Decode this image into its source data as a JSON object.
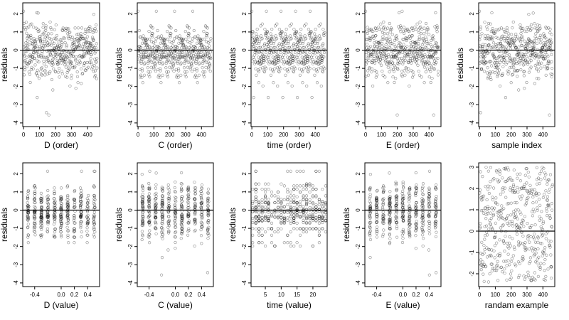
{
  "chart_data": [
    {
      "type": "scatter",
      "xlabel": "D (order)",
      "ylabel": "residuals",
      "xlim": [
        -5,
        475
      ],
      "ylim": [
        -4.2,
        2.6
      ],
      "xticks": [
        "0",
        "100",
        "200",
        "300",
        "400"
      ],
      "yticks": [
        "-4",
        "-3",
        "-2",
        "-1",
        "0",
        "1",
        "2"
      ],
      "hline": 0,
      "points": "simulated; 460 observations, residuals roughly between -4 and 2.3"
    },
    {
      "type": "scatter",
      "xlabel": "C (order)",
      "ylabel": "residuals",
      "xlim": [
        -5,
        475
      ],
      "ylim": [
        -4.2,
        2.6
      ],
      "xticks": [
        "0",
        "100",
        "200",
        "300",
        "400"
      ],
      "yticks": [
        "-4",
        "-3",
        "-2",
        "-1",
        "0",
        "1",
        "2"
      ],
      "hline": 0
    },
    {
      "type": "scatter",
      "xlabel": "time (order)",
      "ylabel": "residuals",
      "xlim": [
        -5,
        475
      ],
      "ylim": [
        -4.2,
        2.6
      ],
      "xticks": [
        "0",
        "100",
        "200",
        "300",
        "400"
      ],
      "yticks": [
        "-4",
        "-3",
        "-2",
        "-1",
        "0",
        "1",
        "2"
      ],
      "hline": 0
    },
    {
      "type": "scatter",
      "xlabel": "E (order)",
      "ylabel": "residuals",
      "xlim": [
        -5,
        475
      ],
      "ylim": [
        -4.2,
        2.6
      ],
      "xticks": [
        "0",
        "100",
        "200",
        "300",
        "400"
      ],
      "yticks": [
        "-4",
        "-3",
        "-2",
        "-1",
        "0",
        "1",
        "2"
      ],
      "hline": 0
    },
    {
      "type": "scatter",
      "xlabel": "sample index",
      "ylabel": "residuals",
      "xlim": [
        -5,
        475
      ],
      "ylim": [
        -4.2,
        2.6
      ],
      "xticks": [
        "0",
        "100",
        "200",
        "300",
        "400"
      ],
      "yticks": [
        "-4",
        "-3",
        "-2",
        "-1",
        "0",
        "1",
        "2"
      ],
      "hline": 0
    },
    {
      "type": "scatter",
      "xlabel": "D (value)",
      "ylabel": "residuals",
      "xlim": [
        -0.58,
        0.58
      ],
      "ylim": [
        -4.2,
        2.6
      ],
      "xticks": [
        "-0.4",
        "0.0",
        "0.2",
        "0.4"
      ],
      "yticks": [
        "-4",
        "-3",
        "-2",
        "-1",
        "0",
        "1",
        "2"
      ],
      "hline": 0
    },
    {
      "type": "scatter",
      "xlabel": "C (value)",
      "ylabel": "residuals",
      "xlim": [
        -0.58,
        0.58
      ],
      "ylim": [
        -4.2,
        2.6
      ],
      "xticks": [
        "-0.4",
        "0.0",
        "0.2",
        "0.4"
      ],
      "yticks": [
        "-4",
        "-3",
        "-2",
        "-1",
        "0",
        "1",
        "2"
      ],
      "hline": 0
    },
    {
      "type": "scatter",
      "xlabel": "time (value)",
      "ylabel": "residuals",
      "xlim": [
        0.5,
        24.5
      ],
      "ylim": [
        -4.2,
        2.6
      ],
      "xticks": [
        "5",
        "10",
        "15",
        "20"
      ],
      "yticks": [
        "-4",
        "-3",
        "-2",
        "-1",
        "0",
        "1",
        "2"
      ],
      "hline": 0
    },
    {
      "type": "scatter",
      "xlabel": "E (value)",
      "ylabel": "residuals",
      "xlim": [
        -0.58,
        0.58
      ],
      "ylim": [
        -4.2,
        2.6
      ],
      "xticks": [
        "-0.4",
        "0.0",
        "0.2",
        "0.4"
      ],
      "yticks": [
        "-4",
        "-3",
        "-2",
        "-1",
        "0",
        "1",
        "2"
      ],
      "hline": 0
    },
    {
      "type": "scatter",
      "xlabel": "randam example",
      "ylabel": "",
      "xlim": [
        -5,
        475
      ],
      "ylim": [
        -2.6,
        3.2
      ],
      "xticks": [
        "0",
        "100",
        "200",
        "300",
        "400"
      ],
      "yticks": [
        "-2",
        "-1",
        "0",
        "1",
        "2",
        "3"
      ],
      "hline": 0
    }
  ]
}
